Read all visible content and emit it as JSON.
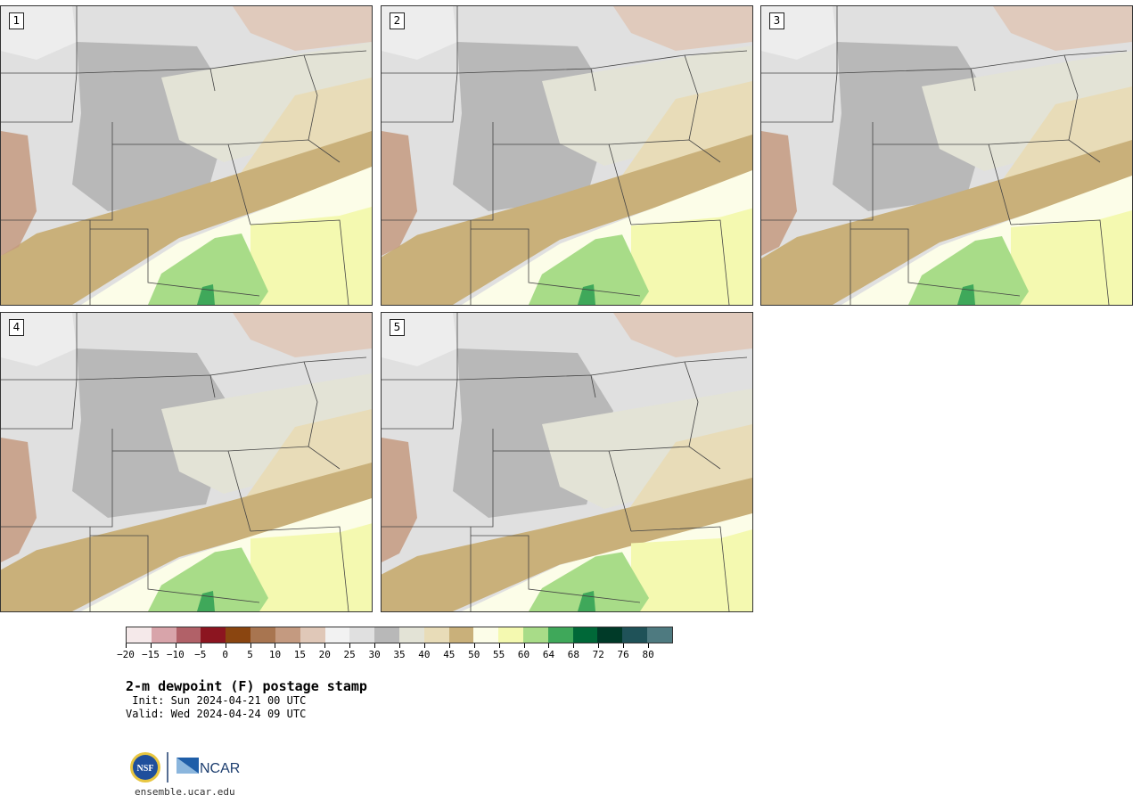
{
  "panels": [
    {
      "label": "1"
    },
    {
      "label": "2"
    },
    {
      "label": "3"
    },
    {
      "label": "4"
    },
    {
      "label": "5"
    }
  ],
  "colorbar": {
    "colors": [
      "#f5e9ea",
      "#d8a4aa",
      "#b16168",
      "#8c1520",
      "#8a4510",
      "#a87550",
      "#c49a80",
      "#e0c8b8",
      "#f2f2f2",
      "#e0e0e0",
      "#b8b8b8",
      "#e3e3d6",
      "#e8dcb8",
      "#c9b07a",
      "#fcfde8",
      "#f4f9b0",
      "#a8dc88",
      "#3fa85a",
      "#006838",
      "#003a28",
      "#1f5258",
      "#4e7a80"
    ],
    "ticks": [
      "−20",
      "−15",
      "−10",
      "−5",
      "0",
      "5",
      "10",
      "15",
      "20",
      "25",
      "30",
      "35",
      "40",
      "45",
      "50",
      "55",
      "60",
      "64",
      "68",
      "72",
      "76",
      "80"
    ]
  },
  "title": "2-m dewpoint (F) postage stamp",
  "init": " Init: Sun 2024-04-21 00 UTC",
  "valid": "Valid: Wed 2024-04-24 09 UTC",
  "logo": {
    "nsf": "NSF",
    "ncar": "NCAR"
  },
  "site": "ensemble.ucar.edu"
}
